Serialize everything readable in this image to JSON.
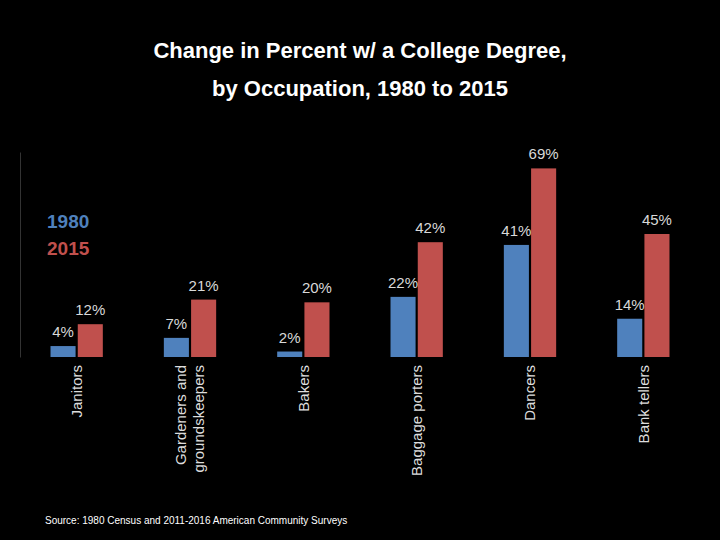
{
  "chart_data": {
    "type": "bar",
    "title": "Change in Percent w/ a College Degree, by Occupation, 1980 to 2015",
    "source": "Source: 1980 Census and 2011-2016 American Community Surveys",
    "categories": [
      "Janitors",
      "Gardeners and groundskeepers",
      "Bakers",
      "Baggage porters",
      "Dancers",
      "Bank tellers"
    ],
    "series": [
      {
        "name": "1980",
        "color": "#4f81bd",
        "values": [
          4,
          7,
          2,
          22,
          41,
          14
        ],
        "value_labels": [
          "4%",
          "7%",
          "2%",
          "22%",
          "41%",
          "14%"
        ]
      },
      {
        "name": "2015",
        "color": "#c0504d",
        "values": [
          12,
          21,
          20,
          42,
          69,
          45
        ],
        "value_labels": [
          "12%",
          "21%",
          "20%",
          "42%",
          "69%",
          "45%"
        ]
      }
    ],
    "ylim": [
      0,
      75
    ],
    "legend": "top-left",
    "data_labels": true,
    "tick_labels": "x",
    "grid": false
  }
}
